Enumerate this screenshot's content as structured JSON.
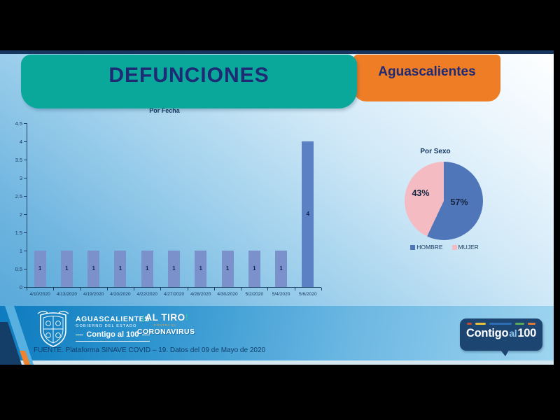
{
  "header": {
    "title": "DEFUNCIONES",
    "region": "Aguascalientes"
  },
  "chart_data": [
    {
      "type": "bar",
      "title": "Por Fecha",
      "categories": [
        "4/10/2020",
        "4/13/2020",
        "4/19/2020",
        "4/20/2020",
        "4/22/2020",
        "4/27/2020",
        "4/28/2020",
        "4/30/2020",
        "5/2/2020",
        "5/4/2020",
        "5/6/2020"
      ],
      "values": [
        1,
        1,
        1,
        1,
        1,
        1,
        1,
        1,
        1,
        1,
        4
      ],
      "xlabel": "",
      "ylabel": "",
      "ylim": [
        0,
        4.5
      ],
      "ytick_step": 0.5,
      "grid": false,
      "legend": false,
      "bar_color": "#7b91cb",
      "bar_color_max": "#5b80c3",
      "value_label_color": "#0e2450"
    },
    {
      "type": "pie",
      "title": "Por Sexo",
      "slices": [
        {
          "label": "HOMBRE",
          "value": 57,
          "pct_label": "57%",
          "color": "#4f76b8"
        },
        {
          "label": "MUJER",
          "value": 43,
          "pct_label": "43%",
          "color": "#f4bbc3"
        }
      ],
      "start_angle_deg": 0,
      "direction": "clockwise",
      "legend_position": "bottom"
    }
  ],
  "footer": {
    "gov_logo": {
      "name": "AGUASCALIENTES",
      "sub": "GOBIERNO DEL ESTADO",
      "slogan": "Contigo al 100"
    },
    "campaign_logo": {
      "excl_open": "¡",
      "name": "AL TIRO",
      "excl_close": "!",
      "mid": "CONTRA EL",
      "bottom": "CORONAVIRUS"
    },
    "source": "FUENTE. Plataforma SINAVE COVID – 19. Datos del 09 de Mayo de 2020",
    "badge": {
      "word1": "Contigo",
      "word2": "al",
      "word3": "100"
    },
    "badge_dashes": [
      {
        "color": "#c44b34",
        "width": 7
      },
      {
        "color": "#e6c23c",
        "width": 15
      },
      {
        "color": "#2e6db4",
        "width": 32
      },
      {
        "color": "#5aa85c",
        "width": 13
      },
      {
        "color": "#e07b35",
        "width": 11
      }
    ]
  },
  "colors": {
    "teal_banner": "#0aa79b",
    "orange_banner": "#ef7d26",
    "navy_text": "#1e2a74",
    "axis": "#1c3f66",
    "tick_label": "#14365f",
    "footer_navy": "#1d4572",
    "pie_blue": "#4f76b8",
    "pie_pink": "#f4bbc3"
  }
}
